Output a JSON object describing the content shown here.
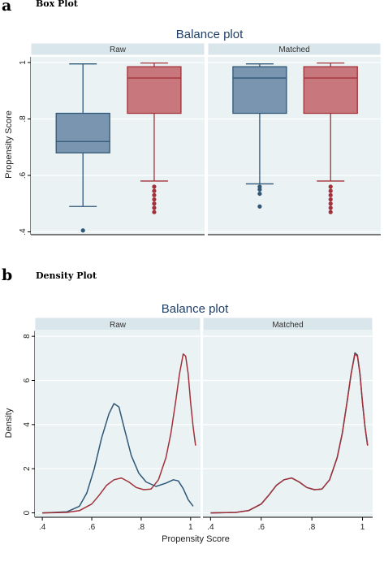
{
  "colors": {
    "raw_bg": "#eaf2f3",
    "strip_bg": "#d9e6eb",
    "grid": "#ffffff",
    "blue_fill": "#7a95b0",
    "blue_line": "#2f5777",
    "red_fill": "#c8787d",
    "red_line": "#a2313a",
    "title": "#1f3f66"
  },
  "figure": {
    "panel_a": {
      "letter": "a",
      "title": "Box Plot"
    },
    "panel_b": {
      "letter": "b",
      "title": "Density Plot"
    }
  },
  "chart_data": [
    {
      "type": "box",
      "title": "Balance plot",
      "ylabel": "Propensity Score",
      "ylim": [
        0.39,
        1.02
      ],
      "yticks": [
        0.4,
        0.6,
        0.8,
        1
      ],
      "ytick_labels": [
        ".4",
        ".6",
        ".8",
        "1"
      ],
      "facets": [
        {
          "name": "Raw",
          "boxes": [
            {
              "group": "blue",
              "q1": 0.68,
              "median": 0.72,
              "q3": 0.82,
              "whisker_low": 0.49,
              "whisker_high": 0.995,
              "outliers": [
                0.405
              ]
            },
            {
              "group": "red",
              "q1": 0.82,
              "median": 0.945,
              "q3": 0.985,
              "whisker_low": 0.58,
              "whisker_high": 0.998,
              "outliers": [
                0.47,
                0.485,
                0.5,
                0.515,
                0.53,
                0.545,
                0.56
              ]
            }
          ]
        },
        {
          "name": "Matched",
          "boxes": [
            {
              "group": "blue",
              "q1": 0.82,
              "median": 0.945,
              "q3": 0.985,
              "whisker_low": 0.57,
              "whisker_high": 0.995,
              "outliers": [
                0.49,
                0.535,
                0.55,
                0.56
              ]
            },
            {
              "group": "red",
              "q1": 0.82,
              "median": 0.945,
              "q3": 0.985,
              "whisker_low": 0.58,
              "whisker_high": 0.998,
              "outliers": [
                0.47,
                0.485,
                0.5,
                0.515,
                0.53,
                0.545,
                0.56
              ]
            }
          ]
        }
      ]
    },
    {
      "type": "line",
      "title": "Balance plot",
      "xlabel": "Propensity Score",
      "ylabel": "Density",
      "xlim": [
        0.37,
        1.04
      ],
      "ylim": [
        -0.2,
        8.3
      ],
      "xticks": [
        0.4,
        0.6,
        0.8,
        1
      ],
      "xtick_labels": [
        ".4",
        ".6",
        ".8",
        "1"
      ],
      "yticks": [
        0,
        2,
        4,
        6,
        8
      ],
      "ytick_labels": [
        "0",
        "2",
        "4",
        "6",
        "8"
      ],
      "facets": [
        {
          "name": "Raw",
          "series": [
            {
              "group": "blue",
              "x": [
                0.4,
                0.5,
                0.55,
                0.58,
                0.61,
                0.64,
                0.67,
                0.69,
                0.71,
                0.73,
                0.76,
                0.79,
                0.82,
                0.86,
                0.9,
                0.93,
                0.95,
                0.97,
                0.99,
                1.01
              ],
              "y": [
                0.0,
                0.05,
                0.3,
                0.9,
                2.0,
                3.4,
                4.5,
                4.95,
                4.8,
                3.9,
                2.6,
                1.8,
                1.4,
                1.2,
                1.35,
                1.5,
                1.45,
                1.1,
                0.6,
                0.3
              ]
            },
            {
              "group": "red",
              "x": [
                0.4,
                0.5,
                0.55,
                0.6,
                0.63,
                0.66,
                0.69,
                0.72,
                0.75,
                0.78,
                0.81,
                0.84,
                0.87,
                0.9,
                0.92,
                0.94,
                0.955,
                0.97,
                0.98,
                0.99,
                1.0,
                1.01,
                1.02
              ],
              "y": [
                0.0,
                0.02,
                0.1,
                0.4,
                0.8,
                1.25,
                1.5,
                1.58,
                1.4,
                1.15,
                1.05,
                1.08,
                1.5,
                2.5,
                3.6,
                5.1,
                6.3,
                7.2,
                7.1,
                6.3,
                5.0,
                3.9,
                3.05
              ]
            }
          ]
        },
        {
          "name": "Matched",
          "series": [
            {
              "group": "blue",
              "x": [
                0.4,
                0.5,
                0.55,
                0.6,
                0.63,
                0.66,
                0.69,
                0.72,
                0.75,
                0.78,
                0.81,
                0.84,
                0.87,
                0.9,
                0.92,
                0.94,
                0.955,
                0.97,
                0.98,
                0.99,
                1.0,
                1.01,
                1.02
              ],
              "y": [
                0.0,
                0.02,
                0.1,
                0.4,
                0.8,
                1.25,
                1.5,
                1.58,
                1.4,
                1.15,
                1.05,
                1.08,
                1.5,
                2.5,
                3.6,
                5.1,
                6.3,
                7.25,
                7.15,
                6.3,
                5.0,
                3.9,
                3.05
              ]
            },
            {
              "group": "red",
              "x": [
                0.4,
                0.5,
                0.55,
                0.6,
                0.63,
                0.66,
                0.69,
                0.72,
                0.75,
                0.78,
                0.81,
                0.84,
                0.87,
                0.9,
                0.92,
                0.94,
                0.955,
                0.97,
                0.98,
                0.99,
                1.0,
                1.01,
                1.02
              ],
              "y": [
                0.0,
                0.02,
                0.1,
                0.4,
                0.8,
                1.25,
                1.5,
                1.58,
                1.4,
                1.15,
                1.05,
                1.08,
                1.5,
                2.5,
                3.6,
                5.1,
                6.3,
                7.2,
                7.1,
                6.3,
                5.0,
                3.9,
                3.05
              ]
            }
          ]
        }
      ]
    }
  ]
}
